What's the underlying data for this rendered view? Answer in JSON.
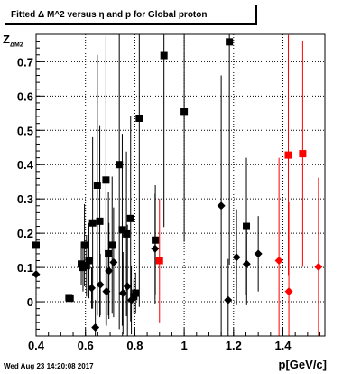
{
  "chart_data": {
    "type": "scatter",
    "title": "Fitted Δ M^2 versus η and p for Global proton",
    "xlabel": "p[GeV/c]",
    "ylabel": "Z",
    "ylabel_sub": "ΔM2",
    "xlim": [
      0.4,
      1.57
    ],
    "ylim": [
      -0.1,
      0.78
    ],
    "x_ticks": [
      {
        "value": 0.4,
        "label": "0.4"
      },
      {
        "value": 0.6,
        "label": "0.6"
      },
      {
        "value": 0.8,
        "label": "0.8"
      },
      {
        "value": 1.0,
        "label": "1"
      },
      {
        "value": 1.2,
        "label": "1.2"
      },
      {
        "value": 1.4,
        "label": "1.4"
      }
    ],
    "y_ticks": [
      {
        "value": 0.0,
        "label": "0"
      },
      {
        "value": 0.1,
        "label": "0.1"
      },
      {
        "value": 0.2,
        "label": "0.2"
      },
      {
        "value": 0.3,
        "label": "0.3"
      },
      {
        "value": 0.4,
        "label": "0.4"
      },
      {
        "value": 0.5,
        "label": "0.5"
      },
      {
        "value": 0.6,
        "label": "0.6"
      },
      {
        "value": 0.7,
        "label": "0.7"
      }
    ],
    "grid": true,
    "timestamp": "Wed Aug 23 14:20:08 2017",
    "series": [
      {
        "marker": "square",
        "color": "#000000",
        "points": [
          {
            "x": 0.4,
            "y": 0.165,
            "err": 0.04
          },
          {
            "x": 0.533,
            "y": 0.012,
            "err": 0.01
          },
          {
            "x": 0.538,
            "y": 0.01,
            "err": 0.01
          },
          {
            "x": 0.583,
            "y": 0.11,
            "err": 0.06
          },
          {
            "x": 0.59,
            "y": 0.1,
            "err": 0.07
          },
          {
            "x": 0.596,
            "y": 0.165,
            "err": 0.12
          },
          {
            "x": 0.604,
            "y": 0.105,
            "err": 0.09
          },
          {
            "x": 0.614,
            "y": 0.12,
            "err": 0.11
          },
          {
            "x": 0.629,
            "y": 0.23,
            "err": 0.25
          },
          {
            "x": 0.648,
            "y": 0.34,
            "err": 0.38
          },
          {
            "x": 0.658,
            "y": 0.235,
            "err": 0.28
          },
          {
            "x": 0.683,
            "y": 0.355,
            "err": 0.42
          },
          {
            "x": 0.693,
            "y": 0.14,
            "err": 0.18
          },
          {
            "x": 0.708,
            "y": 0.165,
            "err": 0.2
          },
          {
            "x": 0.737,
            "y": 0.4,
            "err": 0.48
          },
          {
            "x": 0.749,
            "y": 0.21,
            "err": 0.28
          },
          {
            "x": 0.766,
            "y": 0.198,
            "err": 0.24
          },
          {
            "x": 0.783,
            "y": 0.243,
            "err": 0.3
          },
          {
            "x": 0.796,
            "y": 0.015,
            "err": 0.05
          },
          {
            "x": 0.803,
            "y": 0.025,
            "err": 0.06
          },
          {
            "x": 0.818,
            "y": 0.535,
            "err": 0.55
          },
          {
            "x": 0.883,
            "y": 0.18,
            "err": 0.16
          },
          {
            "x": 0.918,
            "y": 0.718,
            "err": 0.5
          },
          {
            "x": 1.0,
            "y": 0.555,
            "err": 0.38
          },
          {
            "x": 1.183,
            "y": 0.758,
            "err": 0.65
          },
          {
            "x": 1.252,
            "y": 0.22,
            "err": 0.2
          }
        ]
      },
      {
        "marker": "diamond",
        "color": "#000000",
        "points": [
          {
            "x": 0.4,
            "y": 0.08,
            "err": 0.04
          },
          {
            "x": 0.625,
            "y": 0.04,
            "err": 0.06
          },
          {
            "x": 0.64,
            "y": -0.075,
            "err": 0.08
          },
          {
            "x": 0.66,
            "y": 0.05,
            "err": 0.09
          },
          {
            "x": 0.685,
            "y": 0.03,
            "err": 0.1
          },
          {
            "x": 0.695,
            "y": 0.09,
            "err": 0.14
          },
          {
            "x": 0.714,
            "y": 0.115,
            "err": 0.16
          },
          {
            "x": 0.752,
            "y": 0.025,
            "err": 0.12
          },
          {
            "x": 0.77,
            "y": 0.045,
            "err": 0.18
          },
          {
            "x": 0.786,
            "y": 0.005,
            "err": 0.1
          },
          {
            "x": 0.882,
            "y": 0.155,
            "err": 0.16
          },
          {
            "x": 1.15,
            "y": 0.28,
            "err": 0.38
          },
          {
            "x": 1.178,
            "y": 0.005,
            "err": 0.12
          },
          {
            "x": 1.212,
            "y": 0.13,
            "err": 0.14
          },
          {
            "x": 1.253,
            "y": 0.11,
            "err": 0.12
          },
          {
            "x": 1.3,
            "y": 0.14,
            "err": 0.11
          }
        ]
      },
      {
        "marker": "square",
        "color": "#ff0000",
        "points": [
          {
            "x": 0.9,
            "y": 0.12,
            "err": 0.18
          },
          {
            "x": 1.422,
            "y": 0.428,
            "err": 0.35
          },
          {
            "x": 1.48,
            "y": 0.432,
            "err": 0.33
          }
        ]
      },
      {
        "marker": "diamond",
        "color": "#ff0000",
        "points": [
          {
            "x": 1.384,
            "y": 0.12,
            "err": 0.3
          },
          {
            "x": 1.424,
            "y": 0.03,
            "err": 0.26
          },
          {
            "x": 1.544,
            "y": 0.102,
            "err": 0.26
          }
        ]
      }
    ]
  }
}
